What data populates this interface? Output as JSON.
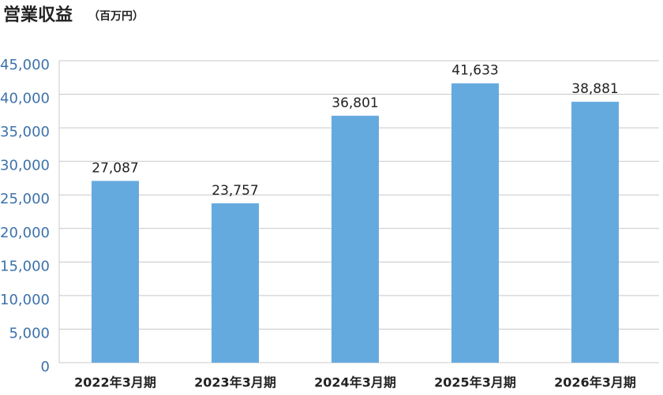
{
  "chart_data": {
    "type": "bar",
    "title": "営業収益",
    "subtitle": "（百万円）",
    "categories": [
      "2022年3月期",
      "2023年3月期",
      "2024年3月期",
      "2025年3月期",
      "2026年3月期"
    ],
    "values": [
      27087,
      23757,
      36801,
      41633,
      38881
    ],
    "value_labels": [
      "27,087",
      "23,757",
      "36,801",
      "41,633",
      "38,881"
    ],
    "color": "#65aadf",
    "ylim": [
      0,
      45000
    ],
    "yticks": [
      0,
      {
        "value": 5000,
        "label": "5,000"
      },
      {
        "value": 10000,
        "label": "10,000"
      },
      {
        "value": 15000,
        "label": "15,000"
      },
      {
        "value": 20000,
        "label": "20,000"
      },
      {
        "value": 25000,
        "label": "25,000"
      },
      {
        "value": 30000,
        "label": "30,000"
      },
      {
        "value": 35000,
        "label": "35,000"
      },
      {
        "value": 40000,
        "label": "40,000"
      },
      {
        "value": 45000,
        "label": "45,000"
      }
    ],
    "grid": true
  }
}
